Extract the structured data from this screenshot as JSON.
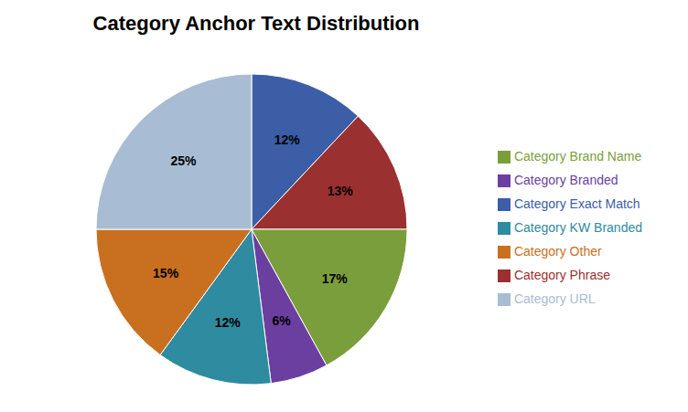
{
  "chart_data": {
    "type": "pie",
    "title": "Category Anchor Text Distribution",
    "categories": [
      "Category Exact Match",
      "Category Phrase",
      "Category Brand Name",
      "Category Branded",
      "Category KW Branded",
      "Category Other",
      "Category URL"
    ],
    "values": [
      12,
      13,
      17,
      6,
      12,
      15,
      25
    ],
    "value_labels": [
      "12%",
      "13%",
      "17%",
      "6%",
      "12%",
      "15%",
      "25%"
    ],
    "colors": [
      "#3B5EA6",
      "#9B3030",
      "#7A9E3B",
      "#6B3FA0",
      "#2E8BA0",
      "#C97020",
      "#A8BDD4"
    ],
    "data_labels": true,
    "legend": "right"
  }
}
